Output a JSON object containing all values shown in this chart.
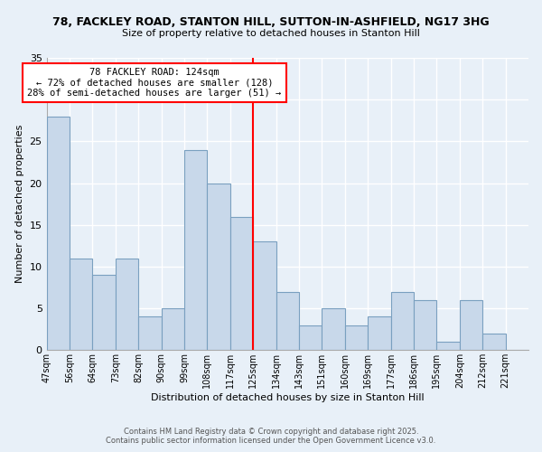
{
  "title1": "78, FACKLEY ROAD, STANTON HILL, SUTTON-IN-ASHFIELD, NG17 3HG",
  "title2": "Size of property relative to detached houses in Stanton Hill",
  "xlabel": "Distribution of detached houses by size in Stanton Hill",
  "ylabel": "Number of detached properties",
  "bin_labels": [
    "47sqm",
    "56sqm",
    "64sqm",
    "73sqm",
    "82sqm",
    "90sqm",
    "99sqm",
    "108sqm",
    "117sqm",
    "125sqm",
    "134sqm",
    "143sqm",
    "151sqm",
    "160sqm",
    "169sqm",
    "177sqm",
    "186sqm",
    "195sqm",
    "204sqm",
    "212sqm",
    "221sqm"
  ],
  "values": [
    28,
    11,
    9,
    11,
    4,
    5,
    24,
    20,
    16,
    13,
    7,
    3,
    5,
    3,
    4,
    7,
    6,
    1,
    6,
    2,
    0
  ],
  "bar_color": "#c8d8ea",
  "bar_edge_color": "#7aA0c0",
  "vline_bin": 9,
  "vline_color": "red",
  "annotation_title": "78 FACKLEY ROAD: 124sqm",
  "annotation_line1": "← 72% of detached houses are smaller (128)",
  "annotation_line2": "28% of semi-detached houses are larger (51) →",
  "ylim": [
    0,
    35
  ],
  "yticks": [
    0,
    5,
    10,
    15,
    20,
    25,
    30,
    35
  ],
  "bg_color": "#e8f0f8",
  "grid_color": "#c8d0dc",
  "footer1": "Contains HM Land Registry data © Crown copyright and database right 2025.",
  "footer2": "Contains public sector information licensed under the Open Government Licence v3.0."
}
